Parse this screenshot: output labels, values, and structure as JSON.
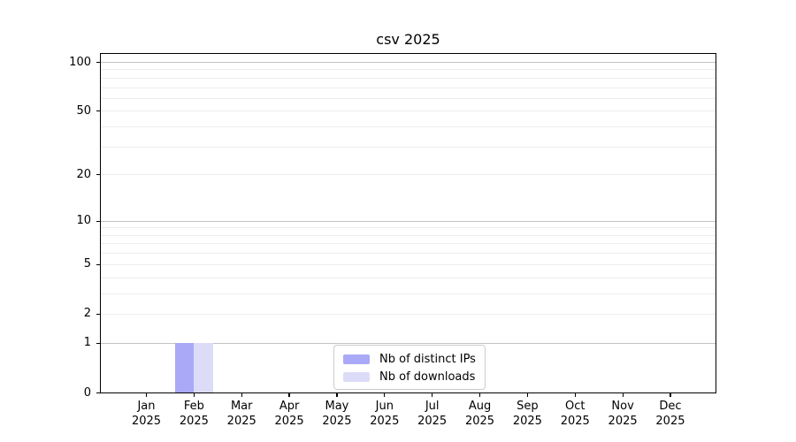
{
  "chart_data": {
    "type": "bar",
    "title": "csv 2025",
    "categories": [
      {
        "month": "Jan",
        "year": "2025"
      },
      {
        "month": "Feb",
        "year": "2025"
      },
      {
        "month": "Mar",
        "year": "2025"
      },
      {
        "month": "Apr",
        "year": "2025"
      },
      {
        "month": "May",
        "year": "2025"
      },
      {
        "month": "Jun",
        "year": "2025"
      },
      {
        "month": "Jul",
        "year": "2025"
      },
      {
        "month": "Aug",
        "year": "2025"
      },
      {
        "month": "Sep",
        "year": "2025"
      },
      {
        "month": "Oct",
        "year": "2025"
      },
      {
        "month": "Nov",
        "year": "2025"
      },
      {
        "month": "Dec",
        "year": "2025"
      }
    ],
    "series": [
      {
        "name": "Nb of distinct IPs",
        "color": "#a9a9f7",
        "values": [
          0,
          1,
          0,
          0,
          0,
          0,
          0,
          0,
          0,
          0,
          0,
          0
        ]
      },
      {
        "name": "Nb of downloads",
        "color": "#dcdcf9",
        "values": [
          0,
          1,
          0,
          0,
          0,
          0,
          0,
          0,
          0,
          0,
          0,
          0
        ]
      }
    ],
    "yscale": "log1p",
    "ylim": [
      0,
      114
    ],
    "yticks": [
      0,
      1,
      2,
      5,
      10,
      20,
      50,
      100
    ],
    "y_major_gridlines": [
      1,
      10,
      100
    ],
    "y_minor_gridlines": [
      2,
      3,
      4,
      5,
      6,
      7,
      8,
      9,
      20,
      30,
      40,
      50,
      60,
      70,
      80,
      90
    ],
    "grid": true,
    "legend_position": "inside lower-center",
    "xlabel": "",
    "ylabel": ""
  },
  "colors": {
    "axis": "#000000",
    "major_grid": "#c3c3c3",
    "minor_grid": "#ededed",
    "legend_border": "#cccccc",
    "background": "#ffffff"
  }
}
